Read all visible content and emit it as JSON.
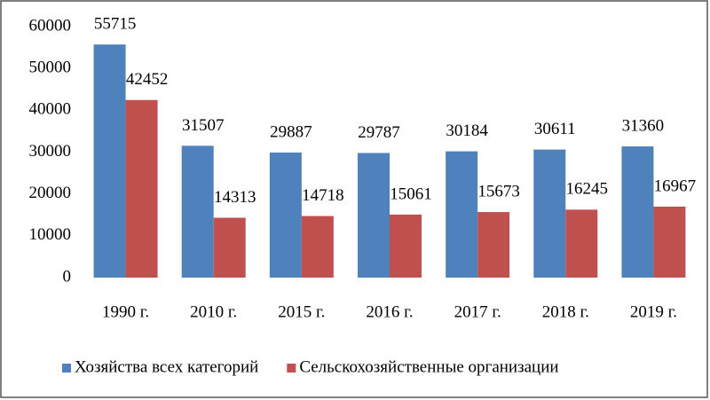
{
  "chart_data": {
    "type": "bar",
    "categories": [
      "1990 г.",
      "2010 г.",
      "2015 г.",
      "2016 г.",
      "2017 г.",
      "2018 г.",
      "2019 г."
    ],
    "series": [
      {
        "name": "Хозяйства всех категорий",
        "color": "#4f81bd",
        "values": [
          55715,
          31507,
          29887,
          29787,
          30184,
          30611,
          31360
        ]
      },
      {
        "name": "Сельскохозяйственные организации",
        "color": "#c0504d",
        "values": [
          42452,
          14313,
          14718,
          15061,
          15673,
          16245,
          16967
        ]
      }
    ],
    "ylim": [
      0,
      60000
    ],
    "yticks": [
      0,
      10000,
      20000,
      30000,
      40000,
      50000,
      60000
    ],
    "grid": false,
    "legend": "bottom"
  }
}
